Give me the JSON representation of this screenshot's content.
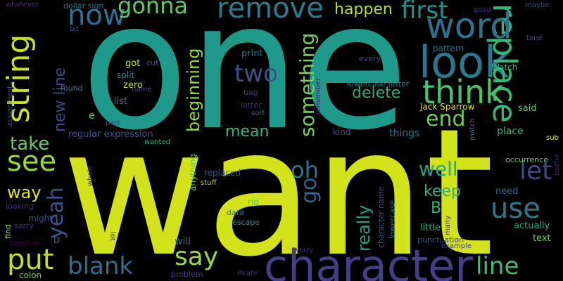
{
  "words": [
    {
      "text": "one",
      "color": "#1f9a8a"
    },
    {
      "text": "want",
      "color": "#d2e21b"
    },
    {
      "text": "character",
      "color": "#433e85"
    },
    {
      "text": "look",
      "color": "#2a788e"
    },
    {
      "text": "replace",
      "color": "#35b779"
    },
    {
      "text": "string",
      "color": "#c8e020"
    },
    {
      "text": "now",
      "color": "#2c728e"
    },
    {
      "text": "word",
      "color": "#2d708e"
    },
    {
      "text": "remove",
      "color": "#287d8e"
    },
    {
      "text": "think",
      "color": "#4ac16d"
    },
    {
      "text": "first",
      "color": "#1f948c"
    },
    {
      "text": "gonna",
      "color": "#5ec962"
    },
    {
      "text": "happen",
      "color": "#b5de2b"
    },
    {
      "text": "something",
      "color": "#7ad151"
    },
    {
      "text": "two",
      "color": "#3b528b"
    },
    {
      "text": "delete",
      "color": "#25ab82"
    },
    {
      "text": "end",
      "color": "#6ece58"
    },
    {
      "text": "beginning",
      "color": "#93d741"
    },
    {
      "text": "see",
      "color": "#95d840"
    },
    {
      "text": "take",
      "color": "#65cb5e"
    },
    {
      "text": "new line",
      "color": "#414487"
    },
    {
      "text": "mean",
      "color": "#35b779"
    },
    {
      "text": "let",
      "color": "#3e4989"
    },
    {
      "text": "oh",
      "color": "#2a788e"
    },
    {
      "text": "well",
      "color": "#22a884"
    },
    {
      "text": "go",
      "color": "#33638d"
    },
    {
      "text": "use",
      "color": "#297a8e"
    },
    {
      "text": "keep",
      "color": "#2ab07f"
    },
    {
      "text": "way",
      "color": "#dde318"
    },
    {
      "text": "yeah",
      "color": "#3a548c"
    },
    {
      "text": "really",
      "color": "#1fa188"
    },
    {
      "text": "B",
      "color": "#2db27d"
    },
    {
      "text": "put",
      "color": "#c2df23"
    },
    {
      "text": "say",
      "color": "#9dd93b"
    },
    {
      "text": "blank",
      "color": "#2e6e8e"
    },
    {
      "text": "line",
      "color": "#3fbc73"
    },
    {
      "text": "regular expression",
      "color": "#3b528b"
    },
    {
      "text": "Jack Sparrow",
      "color": "#d8e219"
    },
    {
      "text": "print",
      "color": "#2c728e"
    },
    {
      "text": "got",
      "color": "#c8e020"
    },
    {
      "text": "split",
      "color": "#287d8e"
    },
    {
      "text": "zero",
      "color": "#b5de2b"
    },
    {
      "text": "list",
      "color": "#2a788e"
    },
    {
      "text": "pattern",
      "color": "#2d708e"
    },
    {
      "text": "Watch",
      "color": "#35b779"
    },
    {
      "text": "every",
      "color": "#3e4989"
    },
    {
      "text": "lowercase letter",
      "color": "#25858e"
    },
    {
      "text": "letter",
      "color": "#472d7b"
    },
    {
      "text": "bag",
      "color": "#46327e"
    },
    {
      "text": "sort",
      "color": "#31688e"
    },
    {
      "text": "remember",
      "color": "#482374"
    },
    {
      "text": "said",
      "color": "#65cb5e"
    },
    {
      "text": "kind",
      "color": "#3b528b"
    },
    {
      "text": "things",
      "color": "#2a788e"
    },
    {
      "text": "place",
      "color": "#35b779"
    },
    {
      "text": "match",
      "color": "#2d708e"
    },
    {
      "text": "sub",
      "color": "#d8e219"
    },
    {
      "text": "occurrence",
      "color": "#65cb5e"
    },
    {
      "text": "need",
      "color": "#33638d"
    },
    {
      "text": "actually",
      "color": "#22a884"
    },
    {
      "text": "useful",
      "color": "#482878"
    },
    {
      "text": "text",
      "color": "#6ece58"
    },
    {
      "text": "little",
      "color": "#2ab07f"
    },
    {
      "text": "many",
      "color": "#472d7b"
    },
    {
      "text": "example",
      "color": "#3e4989"
    },
    {
      "text": "punctuation",
      "color": "#414487"
    },
    {
      "text": "worry",
      "color": "#482374"
    },
    {
      "text": "Pirate",
      "color": "#46327e"
    },
    {
      "text": "problem",
      "color": "#433e85"
    },
    {
      "text": "colon",
      "color": "#6ece58"
    },
    {
      "text": "together",
      "color": "#440154"
    },
    {
      "text": "sorry",
      "color": "#46327e"
    },
    {
      "text": "might",
      "color": "#3e4989"
    },
    {
      "text": "D",
      "color": "#2d708e"
    },
    {
      "text": "find",
      "color": "#93d741"
    },
    {
      "text": "looking",
      "color": "#482878"
    },
    {
      "text": "lot",
      "color": "#482374"
    },
    {
      "text": "whole",
      "color": "#472d7b"
    },
    {
      "text": "part",
      "color": "#433e85"
    },
    {
      "text": "e",
      "color": "#6ece58"
    },
    {
      "text": "wanted",
      "color": "#2db27d"
    },
    {
      "text": "anything",
      "color": "#5ec962"
    },
    {
      "text": "replaced",
      "color": "#3b528b"
    },
    {
      "text": "stuff",
      "color": "#b5de2b"
    },
    {
      "text": "data",
      "color": "#2a788e"
    },
    {
      "text": "escape",
      "color": "#25858e"
    },
    {
      "text": "rid",
      "color": "#5ec962"
    },
    {
      "text": "will",
      "color": "#31688e"
    },
    {
      "text": "character name",
      "color": "#3b528b"
    },
    {
      "text": "lowercase",
      "color": "#2e6e8e"
    },
    {
      "text": "assignment",
      "color": "#3e4989"
    },
    {
      "text": "found",
      "color": "#25858e"
    },
    {
      "text": "cut",
      "color": "#3a548c"
    },
    {
      "text": "name",
      "color": "#414487"
    },
    {
      "text": "whatever",
      "color": "#482878"
    },
    {
      "text": "dollar sign",
      "color": "#2d708e"
    },
    {
      "text": "bit",
      "color": "#3b528b"
    },
    {
      "text": "good",
      "color": "#472d7b"
    },
    {
      "text": "maybe",
      "color": "#3e4989"
    },
    {
      "text": "time",
      "color": "#3b528b"
    }
  ]
}
